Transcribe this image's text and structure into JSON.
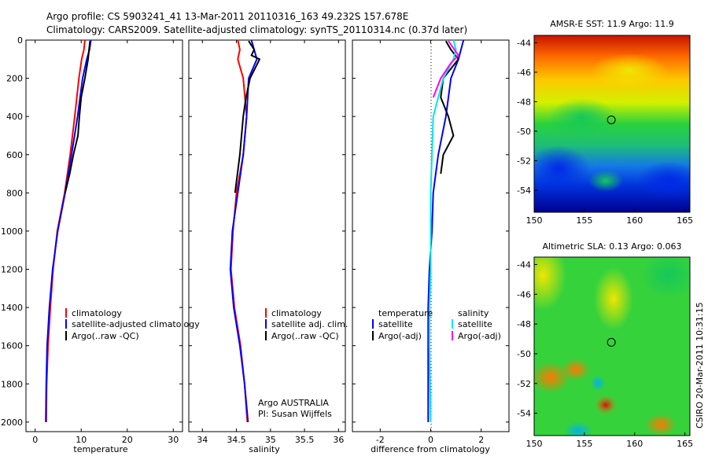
{
  "header": {
    "line1": "Argo profile: CS 5903241_41 13-Mar-2011 20110316_163 49.232S 157.678E",
    "line2": "Climatology: CARS2009. Satellite-adjusted climatology: synTS_20110314.nc (0.37d later)"
  },
  "footer": {
    "org": "Argo AUSTRALIA",
    "pi": "PI: Susan Wijffels",
    "stamp": "CSIRO 20-Mar-2011 10:31:15"
  },
  "colors": {
    "climatology": "#ff0000",
    "satellite": "#0000ff",
    "argo": "#000000",
    "salinity_satellite": "#00e6e6",
    "salinity_argo": "#ff00ff"
  },
  "chart_data": [
    {
      "id": "temperature",
      "type": "line",
      "title": "",
      "xlabel": "temperature",
      "ylabel": "",
      "xlim": [
        -2,
        32
      ],
      "ylim": [
        2050,
        0
      ],
      "x_ticks": [
        0,
        10,
        20,
        30
      ],
      "y_ticks": [
        0,
        200,
        400,
        600,
        800,
        1000,
        1200,
        1400,
        1600,
        1800,
        2000
      ],
      "legend": [
        "climatology",
        "satellite-adjusted climatology",
        "Argo(..raw -QC)"
      ],
      "series": [
        {
          "name": "climatology",
          "color": "#ff0000",
          "x": [
            10.8,
            10.6,
            10.1,
            9.5,
            8.6,
            7.6,
            6.4,
            4.8,
            3.9,
            3.3,
            2.8,
            2.5,
            2.4
          ],
          "y": [
            0,
            50,
            100,
            200,
            400,
            600,
            800,
            1000,
            1200,
            1400,
            1600,
            1800,
            2000
          ]
        },
        {
          "name": "satellite-adjusted climatology",
          "color": "#0000ff",
          "x": [
            12.1,
            11.8,
            11.2,
            10.3,
            9.2,
            7.9,
            6.5,
            4.9,
            3.8,
            3.1,
            2.6,
            2.4,
            2.3
          ],
          "y": [
            0,
            50,
            100,
            200,
            400,
            600,
            800,
            1000,
            1200,
            1400,
            1600,
            1800,
            2000
          ]
        },
        {
          "name": "Argo(..raw -QC)",
          "color": "#000000",
          "x": [
            11.9,
            11.7,
            11.5,
            10.8,
            10.0,
            9.6,
            9.3,
            8.3,
            7.5,
            6.5
          ],
          "y": [
            5,
            50,
            100,
            200,
            300,
            400,
            500,
            600,
            700,
            800
          ]
        }
      ]
    },
    {
      "id": "salinity",
      "type": "line",
      "title": "",
      "xlabel": "salinity",
      "ylabel": "",
      "xlim": [
        33.8,
        36.1
      ],
      "ylim": [
        2050,
        0
      ],
      "x_ticks": [
        34,
        34.5,
        35,
        35.5,
        36
      ],
      "y_ticks": [
        0,
        200,
        400,
        600,
        800,
        1000,
        1200,
        1400,
        1600,
        1800,
        2000
      ],
      "legend": [
        "climatology",
        "satellite adj. clim.",
        "Argo(..raw -QC)"
      ],
      "series": [
        {
          "name": "climatology",
          "color": "#ff0000",
          "x": [
            34.52,
            34.55,
            34.52,
            34.6,
            34.65,
            34.6,
            34.5,
            34.45,
            34.42,
            34.47,
            34.56,
            34.62,
            34.66
          ],
          "y": [
            0,
            50,
            100,
            200,
            400,
            600,
            800,
            1000,
            1200,
            1400,
            1600,
            1800,
            2000
          ]
        },
        {
          "name": "satellite adj. clim.",
          "color": "#0000ff",
          "x": [
            34.72,
            34.76,
            34.8,
            34.68,
            34.65,
            34.6,
            34.52,
            34.44,
            34.41,
            34.46,
            34.55,
            34.62,
            34.67
          ],
          "y": [
            0,
            50,
            100,
            200,
            400,
            600,
            800,
            1000,
            1200,
            1400,
            1600,
            1800,
            2000
          ]
        },
        {
          "name": "Argo(..raw -QC)",
          "color": "#000000",
          "x": [
            34.68,
            34.76,
            34.72,
            34.84,
            34.7,
            34.64,
            34.6,
            34.55,
            34.48
          ],
          "y": [
            5,
            50,
            80,
            100,
            200,
            300,
            400,
            600,
            800
          ]
        }
      ]
    },
    {
      "id": "difference",
      "type": "line",
      "title": "",
      "xlabel": "difference from climatology",
      "ylabel": "",
      "xlim": [
        -3.1,
        3.1
      ],
      "ylim": [
        2050,
        0
      ],
      "x_ticks": [
        -2,
        0,
        2
      ],
      "y_ticks": [
        0,
        200,
        400,
        600,
        800,
        1000,
        1200,
        1400,
        1600,
        1800,
        2000
      ],
      "legend": [
        "temperature",
        "satellite",
        "Argo(-adj)",
        "salinity",
        "satellite",
        "Argo(-adj)"
      ],
      "series": [
        {
          "name": "temperature satellite",
          "color": "#0000ff",
          "x": [
            1.3,
            1.2,
            1.1,
            0.8,
            0.6,
            0.3,
            0.1,
            0.05,
            -0.05,
            -0.1,
            -0.1,
            -0.1,
            -0.1
          ],
          "y": [
            0,
            50,
            100,
            200,
            400,
            600,
            800,
            1000,
            1200,
            1400,
            1600,
            1800,
            2000
          ]
        },
        {
          "name": "temperature Argo(-adj)",
          "color": "#000000",
          "x": [
            0.6,
            0.8,
            1.1,
            0.5,
            0.4,
            0.7,
            0.9,
            0.5,
            0.4
          ],
          "y": [
            5,
            50,
            100,
            200,
            300,
            400,
            500,
            600,
            700
          ]
        },
        {
          "name": "salinity satellite",
          "color": "#00e6e6",
          "x": [
            0.9,
            1.0,
            0.9,
            0.5,
            0.1,
            0.05,
            0.0,
            0.0,
            0.0,
            -0.05,
            -0.05,
            0.0
          ],
          "y": [
            0,
            50,
            100,
            200,
            400,
            600,
            800,
            1000,
            1200,
            1400,
            1600,
            2000
          ]
        },
        {
          "name": "salinity Argo(-adj)",
          "color": "#ff00ff",
          "x": [
            0.7,
            1.1,
            0.8,
            0.4,
            0.1
          ],
          "y": [
            5,
            80,
            120,
            200,
            300
          ]
        }
      ]
    },
    {
      "id": "sst_map",
      "type": "heatmap",
      "title": "AMSR-E SST: 11.9 Argo: 11.9",
      "xlim": [
        150,
        165.5
      ],
      "ylim": [
        -55.5,
        -43.5
      ],
      "x_ticks": [
        150,
        155,
        160,
        165
      ],
      "y_ticks": [
        -44,
        -46,
        -48,
        -50,
        -52,
        -54
      ],
      "marker": {
        "lon": 157.678,
        "lat": -49.232
      }
    },
    {
      "id": "sla_map",
      "type": "heatmap",
      "title": "Altimetric SLA: 0.13 Argo: 0.063",
      "xlim": [
        150,
        165.5
      ],
      "ylim": [
        -55.5,
        -43.5
      ],
      "x_ticks": [
        150,
        155,
        160,
        165
      ],
      "y_ticks": [
        -44,
        -46,
        -48,
        -50,
        -52,
        -54
      ],
      "marker": {
        "lon": 157.678,
        "lat": -49.232
      }
    }
  ]
}
